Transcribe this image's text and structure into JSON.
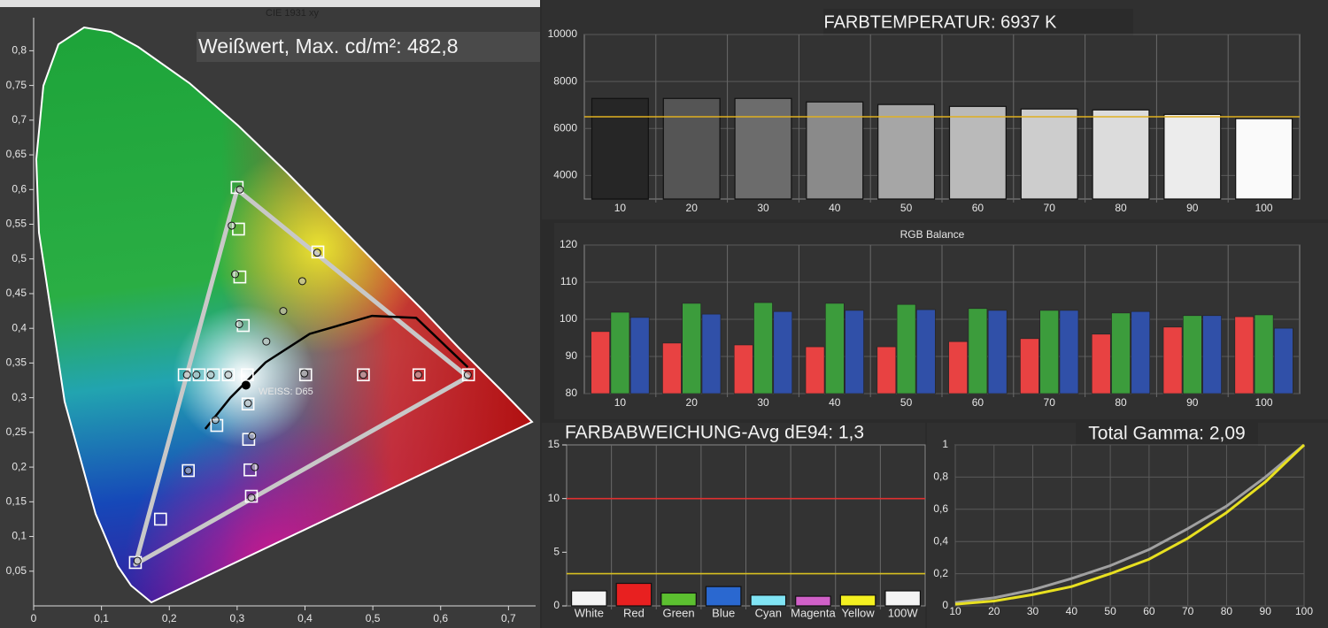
{
  "chart_data": [
    {
      "type": "scatter",
      "title": "CIE 1931 xy",
      "annotations": [
        "Weißwert, Max. cd/m²: 482,8",
        "WEISS: D65"
      ],
      "xlim": [
        0,
        0.74
      ],
      "xticks": [
        0,
        {
          "value": 0.1,
          "label": "0,1"
        },
        {
          "value": 0.2,
          "label": "0,2"
        },
        {
          "value": 0.3,
          "label": "0,3"
        },
        {
          "value": 0.4,
          "label": "0,4"
        },
        {
          "value": 0.5,
          "label": "0,5"
        },
        {
          "value": 0.6,
          "label": "0,6"
        },
        {
          "value": 0.7,
          "label": "0,7"
        }
      ],
      "ylim": [
        0,
        0.84
      ],
      "yticks": [
        {
          "value": 0.05,
          "label": "0,05"
        },
        {
          "value": 0.1,
          "label": "0,1"
        },
        {
          "value": 0.15,
          "label": "0,15"
        },
        {
          "value": 0.2,
          "label": "0,2"
        },
        {
          "value": 0.25,
          "label": "0,25"
        },
        {
          "value": 0.3,
          "label": "0,3"
        },
        {
          "value": 0.35,
          "label": "0,35"
        },
        {
          "value": 0.4,
          "label": "0,4"
        },
        {
          "value": 0.45,
          "label": "0,45"
        },
        {
          "value": 0.5,
          "label": "0,5"
        },
        {
          "value": 0.55,
          "label": "0,55"
        },
        {
          "value": 0.6,
          "label": "0,6"
        },
        {
          "value": 0.65,
          "label": "0,65"
        },
        {
          "value": 0.7,
          "label": "0,7"
        },
        {
          "value": 0.75,
          "label": "0,75"
        },
        {
          "value": 0.8,
          "label": "0,8"
        }
      ],
      "gamut": {
        "x": [
          0.64,
          0.3,
          0.15
        ],
        "y": [
          0.33,
          0.6,
          0.06
        ],
        "color": "#c8c8c8"
      },
      "targets": {
        "x": [
          0.641,
          0.568,
          0.486,
          0.401,
          0.315,
          0.3,
          0.302,
          0.304,
          0.309,
          0.419,
          0.222,
          0.244,
          0.265,
          0.287,
          0.15,
          0.187,
          0.228,
          0.27,
          0.321,
          0.319,
          0.317,
          0.316
        ],
        "y": [
          0.333,
          0.333,
          0.333,
          0.333,
          0.333,
          0.603,
          0.543,
          0.474,
          0.404,
          0.51,
          0.333,
          0.333,
          0.333,
          0.333,
          0.0625,
          0.125,
          0.195,
          0.26,
          0.158,
          0.196,
          0.24,
          0.291
        ]
      },
      "measured": {
        "x": [
          0.64,
          0.567,
          0.486,
          0.399,
          0.304,
          0.292,
          0.297,
          0.303,
          0.418,
          0.396,
          0.368,
          0.343,
          0.226,
          0.24,
          0.261,
          0.287,
          0.153,
          0.228,
          0.268,
          0.321,
          0.326,
          0.322,
          0.316
        ],
        "y": [
          0.333,
          0.333,
          0.333,
          0.335,
          0.6,
          0.548,
          0.478,
          0.406,
          0.509,
          0.468,
          0.425,
          0.381,
          0.333,
          0.333,
          0.333,
          0.333,
          0.065,
          0.195,
          0.268,
          0.156,
          0.2,
          0.245,
          0.292
        ]
      },
      "white_point": {
        "x": 0.313,
        "y": 0.318
      },
      "locus": {
        "x": [
          0.253,
          0.29,
          0.342,
          0.407,
          0.499,
          0.564,
          0.64
        ],
        "y": [
          0.255,
          0.3,
          0.351,
          0.392,
          0.418,
          0.415,
          0.344
        ]
      }
    },
    {
      "type": "bar",
      "title": "FARBTEMPERATUR: 6937 K",
      "categories": [
        "10",
        "20",
        "30",
        "40",
        "50",
        "60",
        "70",
        "80",
        "90",
        "100"
      ],
      "values": [
        7280,
        7280,
        7280,
        7130,
        7020,
        6940,
        6830,
        6790,
        6600,
        6420
      ],
      "colors": [
        "#262626",
        "#555555",
        "#6c6c6c",
        "#8a8a8a",
        "#a6a6a6",
        "#bababa",
        "#cdcdcd",
        "#dcdcdc",
        "#ececec",
        "#fafafa"
      ],
      "reference": {
        "value": 6500,
        "color": "#e0b020"
      },
      "ylim": [
        3000,
        10000
      ],
      "yticks": [
        4000,
        6000,
        8000,
        10000
      ],
      "grid": true
    },
    {
      "type": "bar",
      "title": "RGB Balance",
      "categories": [
        "10",
        "20",
        "30",
        "40",
        "50",
        "60",
        "70",
        "80",
        "90",
        "100"
      ],
      "series": [
        {
          "color": "#e84242",
          "values": [
            96.7,
            93.6,
            93.1,
            92.6,
            92.6,
            94.0,
            94.8,
            96.0,
            97.9,
            100.7
          ]
        },
        {
          "color": "#3c9c3c",
          "values": [
            101.9,
            104.3,
            104.5,
            104.3,
            104.0,
            102.9,
            102.4,
            101.7,
            101.0,
            101.2
          ]
        },
        {
          "color": "#3050a8",
          "values": [
            100.5,
            101.4,
            102.1,
            102.4,
            102.6,
            102.4,
            102.4,
            102.1,
            101.0,
            97.6
          ]
        }
      ],
      "ylim": [
        80,
        120
      ],
      "yticks": [
        80,
        90,
        100,
        110,
        120
      ],
      "grid": true
    },
    {
      "type": "bar",
      "title": "FARBABWEICHUNG-Avg dE94: 1,3",
      "categories": [
        "White",
        "Red",
        "Green",
        "Blue",
        "Cyan",
        "Magenta",
        "Yellow",
        "100W"
      ],
      "values": [
        1.4,
        2.1,
        1.2,
        1.8,
        1.0,
        0.9,
        1.0,
        1.4
      ],
      "colors": [
        "#f4f4f4",
        "#e82020",
        "#5cc030",
        "#2a68d0",
        "#80e4f4",
        "#d060c8",
        "#f4f020",
        "#f4f4f4"
      ],
      "reference_lines": [
        {
          "value": 10,
          "color": "#e03030"
        },
        {
          "value": 3,
          "color": "#d8c020"
        }
      ],
      "ylim": [
        0,
        15
      ],
      "yticks": [
        0,
        5,
        10,
        15
      ]
    },
    {
      "type": "line",
      "title": "Total Gamma: 2,09",
      "x": [
        10,
        20,
        30,
        40,
        50,
        60,
        70,
        80,
        90,
        100
      ],
      "series": [
        {
          "color": "#a0a0a0",
          "values": [
            0.02,
            0.05,
            0.1,
            0.17,
            0.25,
            0.35,
            0.48,
            0.62,
            0.8,
            1
          ]
        },
        {
          "color": "#e8e020",
          "values": [
            0.01,
            0.03,
            0.07,
            0.12,
            0.2,
            0.29,
            0.42,
            0.58,
            0.77,
            1
          ]
        }
      ],
      "xlim": [
        10,
        100
      ],
      "xticks": [
        10,
        20,
        30,
        40,
        50,
        60,
        70,
        80,
        90,
        100
      ],
      "ylim": [
        0,
        1
      ],
      "yticks": [
        0,
        {
          "value": 0.2,
          "label": "0,2"
        },
        {
          "value": 0.4,
          "label": "0,4"
        },
        {
          "value": 0.6,
          "label": "0,6"
        },
        {
          "value": 0.8,
          "label": "0,8"
        },
        1
      ],
      "grid": true
    }
  ]
}
